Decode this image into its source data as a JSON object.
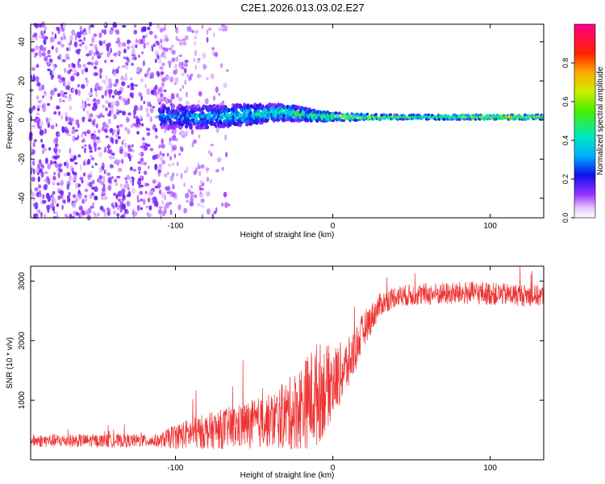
{
  "title": "C2E1.2026.013.03.02.E27",
  "chart_data": [
    {
      "type": "heatmap",
      "xlabel": "Height of straight line (km)",
      "ylabel": "Frequency (Hz)",
      "xlim": [
        -192,
        134
      ],
      "ylim": [
        -50,
        49
      ],
      "x_ticks": [
        -100,
        0,
        100
      ],
      "x_tick_labels": [
        "-100",
        "0",
        "100"
      ],
      "y_ticks": [
        -40,
        -20,
        0,
        20,
        40
      ],
      "y_tick_labels": [
        "-40",
        "-20",
        "0",
        "20",
        "40"
      ],
      "noise_region_x": [
        -192,
        -75
      ],
      "signal_band": [
        {
          "x": -110,
          "f_center": 2.0,
          "spread": 6.0,
          "level": 0.3
        },
        {
          "x": -80,
          "f_center": 1.5,
          "spread": 5.5,
          "level": 0.4
        },
        {
          "x": -50,
          "f_center": 3.0,
          "spread": 5.0,
          "level": 0.45
        },
        {
          "x": -30,
          "f_center": 4.0,
          "spread": 4.0,
          "level": 0.5
        },
        {
          "x": -10,
          "f_center": 2.0,
          "spread": 2.5,
          "level": 0.55
        },
        {
          "x": 10,
          "f_center": 1.5,
          "spread": 1.8,
          "level": 0.7
        },
        {
          "x": 40,
          "f_center": 1.5,
          "spread": 1.2,
          "level": 0.6
        },
        {
          "x": 80,
          "f_center": 1.5,
          "spread": 1.2,
          "level": 0.65
        },
        {
          "x": 100,
          "f_center": 1.5,
          "spread": 1.2,
          "level": 0.8
        },
        {
          "x": 134,
          "f_center": 1.5,
          "spread": 1.2,
          "level": 0.7
        }
      ],
      "colorbar": {
        "label": "Normalized spectral amplitude",
        "range": [
          0.0,
          1.0
        ],
        "ticks": [
          0.0,
          0.2,
          0.4,
          0.6,
          0.8
        ],
        "tick_labels": [
          "0.0",
          "0.2",
          "0.4",
          "0.6",
          "0.8"
        ]
      }
    },
    {
      "type": "line",
      "xlabel": "Height of straight line (km)",
      "ylabel": "SNR (10 * v/v)",
      "xlim": [
        -192,
        134
      ],
      "ylim": [
        0,
        3250
      ],
      "x_ticks": [
        -100,
        0,
        100
      ],
      "x_tick_labels": [
        "-100",
        "0",
        "100"
      ],
      "y_ticks": [
        1000,
        2000,
        3000
      ],
      "y_tick_labels": [
        "1000",
        "2000",
        "3000"
      ],
      "series": [
        {
          "name": "SNR",
          "color": "#ee3333",
          "envelope": [
            {
              "x": -192,
              "mean": 320,
              "noise": 110
            },
            {
              "x": -110,
              "mean": 320,
              "noise": 110
            },
            {
              "x": -100,
              "mean": 400,
              "noise": 220
            },
            {
              "x": -80,
              "mean": 480,
              "noise": 300
            },
            {
              "x": -60,
              "mean": 560,
              "noise": 380
            },
            {
              "x": -40,
              "mean": 650,
              "noise": 450
            },
            {
              "x": -25,
              "mean": 800,
              "noise": 650
            },
            {
              "x": -10,
              "mean": 1100,
              "noise": 900
            },
            {
              "x": 0,
              "mean": 1300,
              "noise": 600
            },
            {
              "x": 10,
              "mean": 1600,
              "noise": 450
            },
            {
              "x": 20,
              "mean": 2200,
              "noise": 300
            },
            {
              "x": 30,
              "mean": 2600,
              "noise": 200
            },
            {
              "x": 40,
              "mean": 2750,
              "noise": 180
            },
            {
              "x": 60,
              "mean": 2780,
              "noise": 190
            },
            {
              "x": 90,
              "mean": 2800,
              "noise": 200
            },
            {
              "x": 134,
              "mean": 2750,
              "noise": 180
            }
          ]
        }
      ]
    }
  ]
}
